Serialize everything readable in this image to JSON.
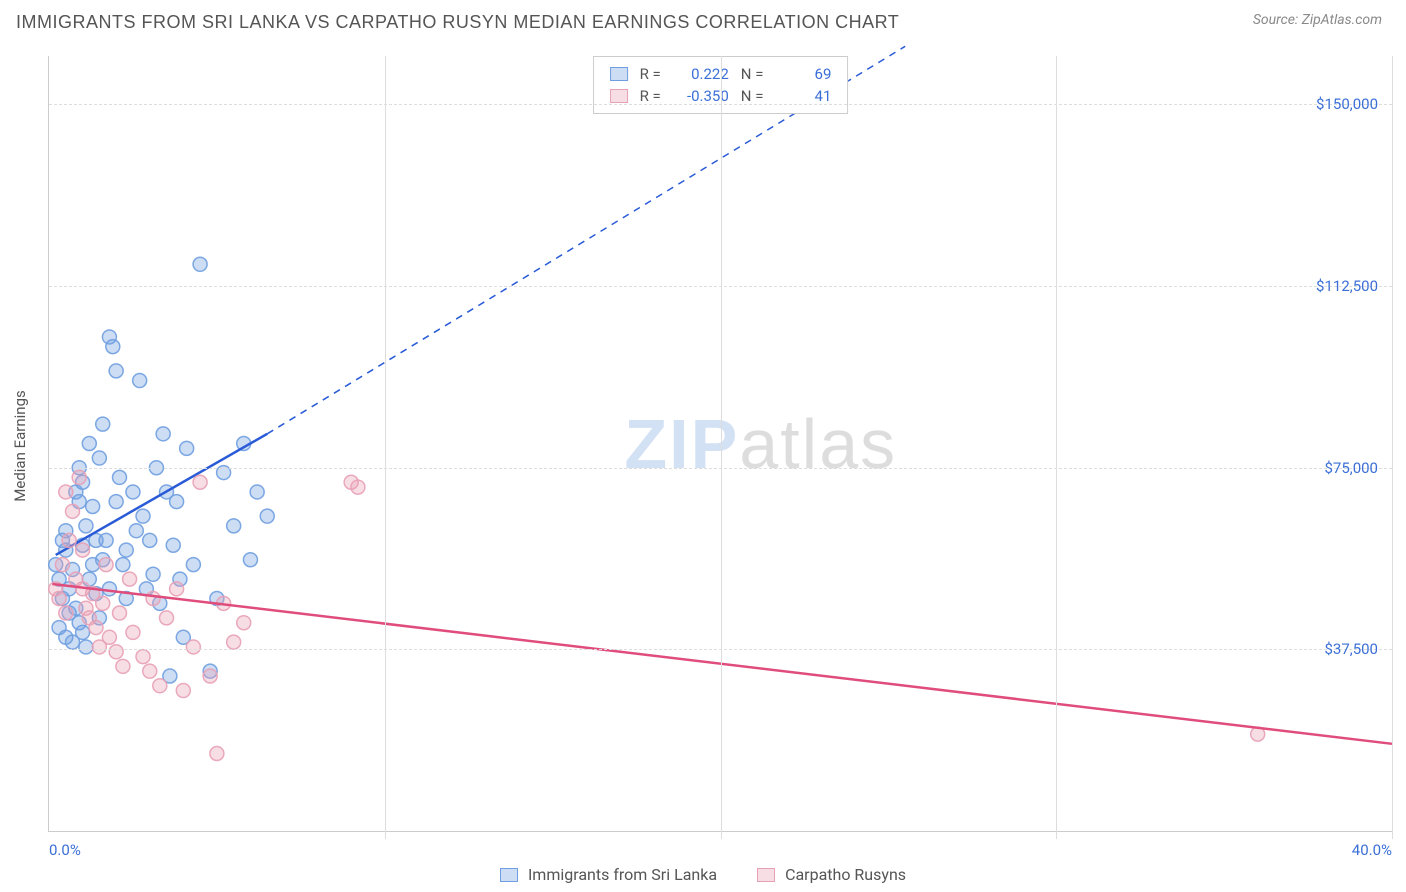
{
  "title": "IMMIGRANTS FROM SRI LANKA VS CARPATHO RUSYN MEDIAN EARNINGS CORRELATION CHART",
  "source_prefix": "Source: ",
  "source_name": "ZipAtlas.com",
  "watermark_a": "ZIP",
  "watermark_b": "atlas",
  "chart": {
    "type": "scatter",
    "x_axis": {
      "min_label": "0.0%",
      "max_label": "40.0%",
      "min": 0.0,
      "max": 40.0,
      "ticks": [
        0,
        10,
        20,
        30,
        40
      ]
    },
    "y_axis": {
      "label": "Median Earnings",
      "ticks": [
        37500,
        75000,
        112500,
        150000
      ],
      "tick_labels": [
        "$37,500",
        "$75,000",
        "$112,500",
        "$150,000"
      ],
      "min": 0,
      "max": 160000
    },
    "grid_color": "#dddddd",
    "axis_color": "#cccccc",
    "background_color": "#ffffff",
    "marker_radius": 7,
    "marker_fill_opacity": 0.35,
    "marker_stroke_opacity": 0.9,
    "series": [
      {
        "key": "srilanka",
        "label": "Immigrants from Sri Lanka",
        "color": "#6f9fe0",
        "line_color": "#2a5bd7",
        "stats": {
          "R": "0.222",
          "N": "69"
        },
        "trend": {
          "x1": 0.2,
          "y1": 57000,
          "x2": 6.5,
          "y2": 82000,
          "dash_to_x": 25.5,
          "dash_to_y": 162000
        },
        "points": [
          [
            0.2,
            55000
          ],
          [
            0.3,
            52000
          ],
          [
            0.4,
            48000
          ],
          [
            0.4,
            60000
          ],
          [
            0.5,
            62000
          ],
          [
            0.5,
            58000
          ],
          [
            0.6,
            50000
          ],
          [
            0.7,
            54000
          ],
          [
            0.8,
            46000
          ],
          [
            0.8,
            70000
          ],
          [
            0.9,
            75000
          ],
          [
            0.9,
            68000
          ],
          [
            1.0,
            59000
          ],
          [
            1.0,
            72000
          ],
          [
            1.1,
            63000
          ],
          [
            1.2,
            80000
          ],
          [
            1.3,
            67000
          ],
          [
            1.4,
            49000
          ],
          [
            1.5,
            44000
          ],
          [
            1.5,
            77000
          ],
          [
            1.6,
            84000
          ],
          [
            1.7,
            60000
          ],
          [
            1.8,
            102000
          ],
          [
            1.9,
            100000
          ],
          [
            2.0,
            95000
          ],
          [
            2.1,
            73000
          ],
          [
            2.2,
            55000
          ],
          [
            2.3,
            48000
          ],
          [
            2.5,
            70000
          ],
          [
            2.7,
            93000
          ],
          [
            2.8,
            65000
          ],
          [
            3.0,
            60000
          ],
          [
            3.2,
            75000
          ],
          [
            3.4,
            82000
          ],
          [
            3.5,
            70000
          ],
          [
            3.6,
            32000
          ],
          [
            3.8,
            68000
          ],
          [
            4.0,
            40000
          ],
          [
            4.1,
            79000
          ],
          [
            4.3,
            55000
          ],
          [
            4.5,
            117000
          ],
          [
            4.8,
            33000
          ],
          [
            5.0,
            48000
          ],
          [
            5.2,
            74000
          ],
          [
            5.5,
            63000
          ],
          [
            5.8,
            80000
          ],
          [
            6.0,
            56000
          ],
          [
            6.2,
            70000
          ],
          [
            6.5,
            65000
          ],
          [
            0.3,
            42000
          ],
          [
            0.5,
            40000
          ],
          [
            0.6,
            45000
          ],
          [
            0.7,
            39000
          ],
          [
            0.9,
            43000
          ],
          [
            1.0,
            41000
          ],
          [
            1.1,
            38000
          ],
          [
            1.2,
            52000
          ],
          [
            1.3,
            55000
          ],
          [
            1.4,
            60000
          ],
          [
            1.6,
            56000
          ],
          [
            1.8,
            50000
          ],
          [
            2.0,
            68000
          ],
          [
            2.3,
            58000
          ],
          [
            2.6,
            62000
          ],
          [
            2.9,
            50000
          ],
          [
            3.1,
            53000
          ],
          [
            3.3,
            47000
          ],
          [
            3.7,
            59000
          ],
          [
            3.9,
            52000
          ]
        ]
      },
      {
        "key": "carpatho",
        "label": "Carpatho Rusyns",
        "color": "#e8a0b5",
        "line_color": "#e04c7c",
        "stats": {
          "R": "-0.350",
          "N": "41"
        },
        "trend": {
          "x1": 0.1,
          "y1": 51000,
          "x2": 40.0,
          "y2": 18000
        },
        "points": [
          [
            0.2,
            50000
          ],
          [
            0.3,
            48000
          ],
          [
            0.4,
            55000
          ],
          [
            0.5,
            70000
          ],
          [
            0.5,
            45000
          ],
          [
            0.6,
            60000
          ],
          [
            0.7,
            66000
          ],
          [
            0.8,
            52000
          ],
          [
            0.9,
            73000
          ],
          [
            1.0,
            50000
          ],
          [
            1.0,
            58000
          ],
          [
            1.1,
            46000
          ],
          [
            1.2,
            44000
          ],
          [
            1.3,
            49000
          ],
          [
            1.4,
            42000
          ],
          [
            1.5,
            38000
          ],
          [
            1.6,
            47000
          ],
          [
            1.7,
            55000
          ],
          [
            1.8,
            40000
          ],
          [
            2.0,
            37000
          ],
          [
            2.1,
            45000
          ],
          [
            2.2,
            34000
          ],
          [
            2.4,
            52000
          ],
          [
            2.5,
            41000
          ],
          [
            2.8,
            36000
          ],
          [
            3.0,
            33000
          ],
          [
            3.1,
            48000
          ],
          [
            3.3,
            30000
          ],
          [
            3.5,
            44000
          ],
          [
            3.8,
            50000
          ],
          [
            4.0,
            29000
          ],
          [
            4.3,
            38000
          ],
          [
            4.5,
            72000
          ],
          [
            4.8,
            32000
          ],
          [
            5.0,
            16000
          ],
          [
            5.2,
            47000
          ],
          [
            5.5,
            39000
          ],
          [
            5.8,
            43000
          ],
          [
            9.0,
            72000
          ],
          [
            9.2,
            71000
          ],
          [
            36.0,
            20000
          ]
        ]
      }
    ]
  },
  "stats_labels": {
    "R": "R =",
    "N": "N ="
  }
}
